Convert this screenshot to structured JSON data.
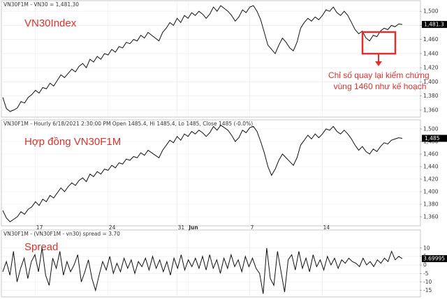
{
  "chart_data": [
    {
      "type": "line",
      "header": "VN30F1M - VN30 = 1,481.30",
      "title": "VN30Index",
      "series": [
        {
          "values": [
            1378,
            1362,
            1358,
            1360,
            1363,
            1372,
            1370,
            1378,
            1382,
            1388,
            1384,
            1392,
            1390,
            1398,
            1394,
            1402,
            1410,
            1406,
            1412,
            1418,
            1414,
            1422,
            1426,
            1420,
            1432,
            1428,
            1436,
            1432,
            1440,
            1438,
            1446,
            1442,
            1450,
            1448,
            1456,
            1454,
            1460,
            1458,
            1466,
            1462,
            1470,
            1466,
            1462,
            1458,
            1470,
            1476,
            1484,
            1480,
            1490,
            1484,
            1494,
            1490,
            1498,
            1494,
            1500,
            1496,
            1490,
            1496,
            1506,
            1500,
            1508,
            1504,
            1500,
            1494,
            1486,
            1492,
            1502,
            1498,
            1506,
            1508,
            1500,
            1488,
            1470,
            1452,
            1446,
            1440,
            1452,
            1462,
            1456,
            1448,
            1444,
            1456,
            1476,
            1484,
            1490,
            1486,
            1492,
            1488,
            1494,
            1502,
            1500,
            1506,
            1498,
            1494,
            1500,
            1494,
            1484,
            1474,
            1468,
            1472,
            1462,
            1458,
            1466,
            1464,
            1472,
            1476,
            1474,
            1480,
            1478,
            1482,
            1481.3
          ]
        }
      ],
      "ylim": [
        1352,
        1512
      ],
      "y_ticks": [
        "1,360",
        "1,380",
        "1,400",
        "1,420",
        "1,440",
        "1,460",
        "1,480",
        "1,500"
      ],
      "last_value": "1,481.3",
      "annotation": "Chỉ số quay lại kiểm chứng vùng 1460 như kế hoạch"
    },
    {
      "type": "line",
      "header": "VN30F1M - Hourly 6/18/2021 2:30:00 PM Open 1485.4, Hi 1485.4, Lo 1485, Close 1485 (-0.0%)",
      "title": "Hợp đồng VN30F1M",
      "series": [
        {
          "values": [
            1370,
            1358,
            1352,
            1356,
            1360,
            1368,
            1364,
            1372,
            1376,
            1384,
            1378,
            1388,
            1384,
            1394,
            1390,
            1398,
            1406,
            1400,
            1408,
            1414,
            1410,
            1418,
            1422,
            1416,
            1428,
            1424,
            1432,
            1428,
            1436,
            1434,
            1442,
            1438,
            1446,
            1444,
            1452,
            1450,
            1456,
            1454,
            1462,
            1458,
            1466,
            1462,
            1458,
            1454,
            1466,
            1474,
            1482,
            1478,
            1488,
            1482,
            1492,
            1488,
            1496,
            1492,
            1498,
            1494,
            1488,
            1494,
            1504,
            1498,
            1506,
            1502,
            1498,
            1490,
            1480,
            1486,
            1498,
            1494,
            1502,
            1504,
            1496,
            1480,
            1462,
            1440,
            1426,
            1436,
            1450,
            1460,
            1454,
            1448,
            1442,
            1454,
            1474,
            1482,
            1490,
            1484,
            1492,
            1486,
            1492,
            1500,
            1498,
            1504,
            1496,
            1492,
            1498,
            1492,
            1484,
            1474,
            1466,
            1472,
            1464,
            1460,
            1468,
            1464,
            1472,
            1478,
            1476,
            1482,
            1484,
            1486,
            1485
          ]
        }
      ],
      "ylim": [
        1350,
        1510
      ],
      "y_ticks": [
        "1,360",
        "1,380",
        "1,400",
        "1,420",
        "1,440",
        "1,460",
        "1,480",
        "1,500"
      ],
      "last_value": "1,485",
      "x_ticks": [
        {
          "label": "17",
          "i": 9
        },
        {
          "label": "24",
          "i": 29
        },
        {
          "label": "31",
          "i": 48
        },
        {
          "label": "Jun",
          "i": 51
        },
        {
          "label": "7",
          "i": 68
        },
        {
          "label": "14",
          "i": 88
        }
      ]
    },
    {
      "type": "line",
      "header": "VN30F1M - (VN30F1M - vn30) spread = 3.70",
      "title": "Spread",
      "series": [
        {
          "values": [
            -4,
            2,
            -6,
            8,
            -10,
            -2,
            4,
            -8,
            2,
            6,
            -4,
            10,
            -6,
            -12,
            4,
            -2,
            8,
            -6,
            2,
            -4,
            0,
            6,
            -10,
            -4,
            3,
            -8,
            -15,
            -6,
            2,
            -3,
            5,
            -5,
            1,
            -4,
            4,
            -2,
            3,
            -5,
            2,
            -1,
            4,
            -3,
            5,
            -2,
            3,
            -4,
            2,
            -6,
            4,
            -2,
            6,
            -3,
            3,
            -1,
            4,
            -2,
            5,
            -3,
            6,
            -2,
            3,
            -5,
            4,
            -2,
            6,
            -1,
            3,
            -4,
            5,
            -1,
            4,
            -2,
            -5,
            -17,
            10,
            -8,
            -12,
            8,
            -4,
            -16,
            3,
            6,
            -3,
            8,
            -2,
            4,
            -4,
            6,
            -1,
            3,
            -3,
            5,
            0,
            4,
            -2,
            3,
            1,
            4,
            2,
            1,
            -1,
            4,
            0,
            2,
            -1,
            3,
            1,
            4,
            2,
            8,
            3,
            5,
            3.7
          ]
        }
      ],
      "ylim": [
        -18,
        14
      ],
      "y_ticks": [
        "-15",
        "-10",
        "-5",
        "0",
        "5",
        "10"
      ],
      "y_tick_values": [
        -15,
        -10,
        -5,
        0,
        5,
        10
      ],
      "last_value": "3.69995"
    }
  ]
}
